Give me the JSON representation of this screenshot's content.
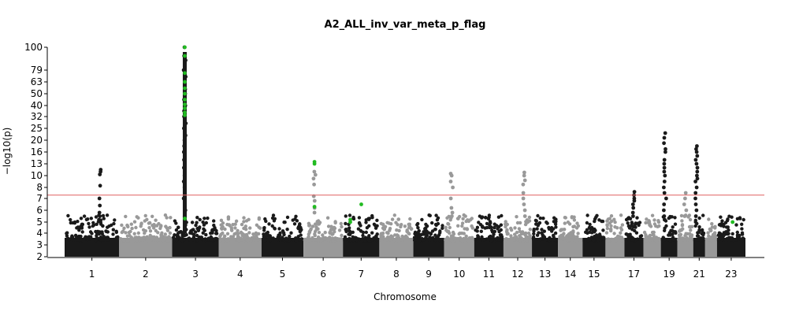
{
  "chart_data": {
    "type": "scatter",
    "subtype": "manhattan",
    "title": "A2_ALL_inv_var_meta_p_flag",
    "xlabel": "Chromosome",
    "ylabel": "−log10(p)",
    "y_scale": "compressed above 8",
    "y_ticks": [
      2,
      3,
      4,
      5,
      6,
      7,
      8,
      10,
      13,
      16,
      20,
      25,
      32,
      40,
      50,
      63,
      79,
      100
    ],
    "ylim": [
      2,
      100
    ],
    "x_tick_labels": [
      "1",
      "2",
      "3",
      "4",
      "5",
      "6",
      "7",
      "8",
      "9",
      "10",
      "11",
      "12",
      "13",
      "14",
      "15",
      "17",
      "19",
      "21",
      "23"
    ],
    "chromosomes": [
      "1",
      "2",
      "3",
      "4",
      "5",
      "6",
      "7",
      "8",
      "9",
      "10",
      "11",
      "12",
      "13",
      "14",
      "15",
      "16",
      "17",
      "18",
      "19",
      "20",
      "21",
      "22",
      "23"
    ],
    "significance_line": 7.3,
    "colors": {
      "odd": "#1a1a1a",
      "even": "#999999",
      "highlight": "#22bb22",
      "threshold": "#e06060"
    },
    "peaks": [
      {
        "chrom": "1",
        "values": [
          11.5,
          11.0,
          10.3,
          8.3,
          7.0,
          6.4,
          5.8,
          5.5,
          5.2
        ]
      },
      {
        "chrom": "3",
        "values": [
          100,
          92,
          88,
          79,
          70,
          63,
          55,
          50,
          45,
          40,
          36,
          32,
          28,
          25,
          22,
          20,
          18,
          16,
          14,
          12,
          10,
          9,
          8,
          7,
          6,
          5.5
        ]
      },
      {
        "chrom": "6",
        "values": [
          11,
          10.2,
          9.5,
          8.5,
          7.2,
          6.8,
          6.2,
          5.8
        ]
      },
      {
        "chrom": "10",
        "values": [
          10.5,
          10.0,
          9.0,
          8.0,
          7.0,
          6.2,
          5.8,
          5.5
        ]
      },
      {
        "chrom": "12",
        "values": [
          10.8,
          10.0,
          9.2,
          8.5,
          7.5,
          7.0,
          6.5,
          6.0,
          5.5
        ]
      },
      {
        "chrom": "17",
        "values": [
          7.6,
          7.3,
          7.0,
          6.8,
          6.5,
          6.2,
          5.8,
          5.5
        ]
      },
      {
        "chrom": "19",
        "values": [
          23,
          21,
          19,
          17,
          16,
          14,
          13,
          12,
          11,
          10,
          9,
          8,
          7.5,
          7,
          6.5,
          6,
          5.5,
          5.2
        ]
      },
      {
        "chrom": "20",
        "values": [
          7.5,
          7.0,
          6.5,
          6.0,
          5.5
        ]
      },
      {
        "chrom": "21",
        "values": [
          18,
          17,
          16,
          15,
          14,
          13,
          12,
          11,
          10,
          9.5,
          9,
          8,
          7.5,
          7,
          6.5,
          6,
          5.5
        ]
      }
    ],
    "highlighted_points": [
      {
        "chrom": "3",
        "values": [
          100,
          92,
          75,
          63,
          56,
          50,
          45,
          41,
          38,
          35,
          33,
          5.3
        ]
      },
      {
        "chrom": "6",
        "values": [
          13.5,
          13.0,
          6.3
        ]
      },
      {
        "chrom": "7",
        "values": [
          6.5,
          5.2,
          5.0
        ]
      },
      {
        "chrom": "23",
        "values": [
          5.0
        ]
      }
    ],
    "grid": false,
    "legend": "none"
  }
}
